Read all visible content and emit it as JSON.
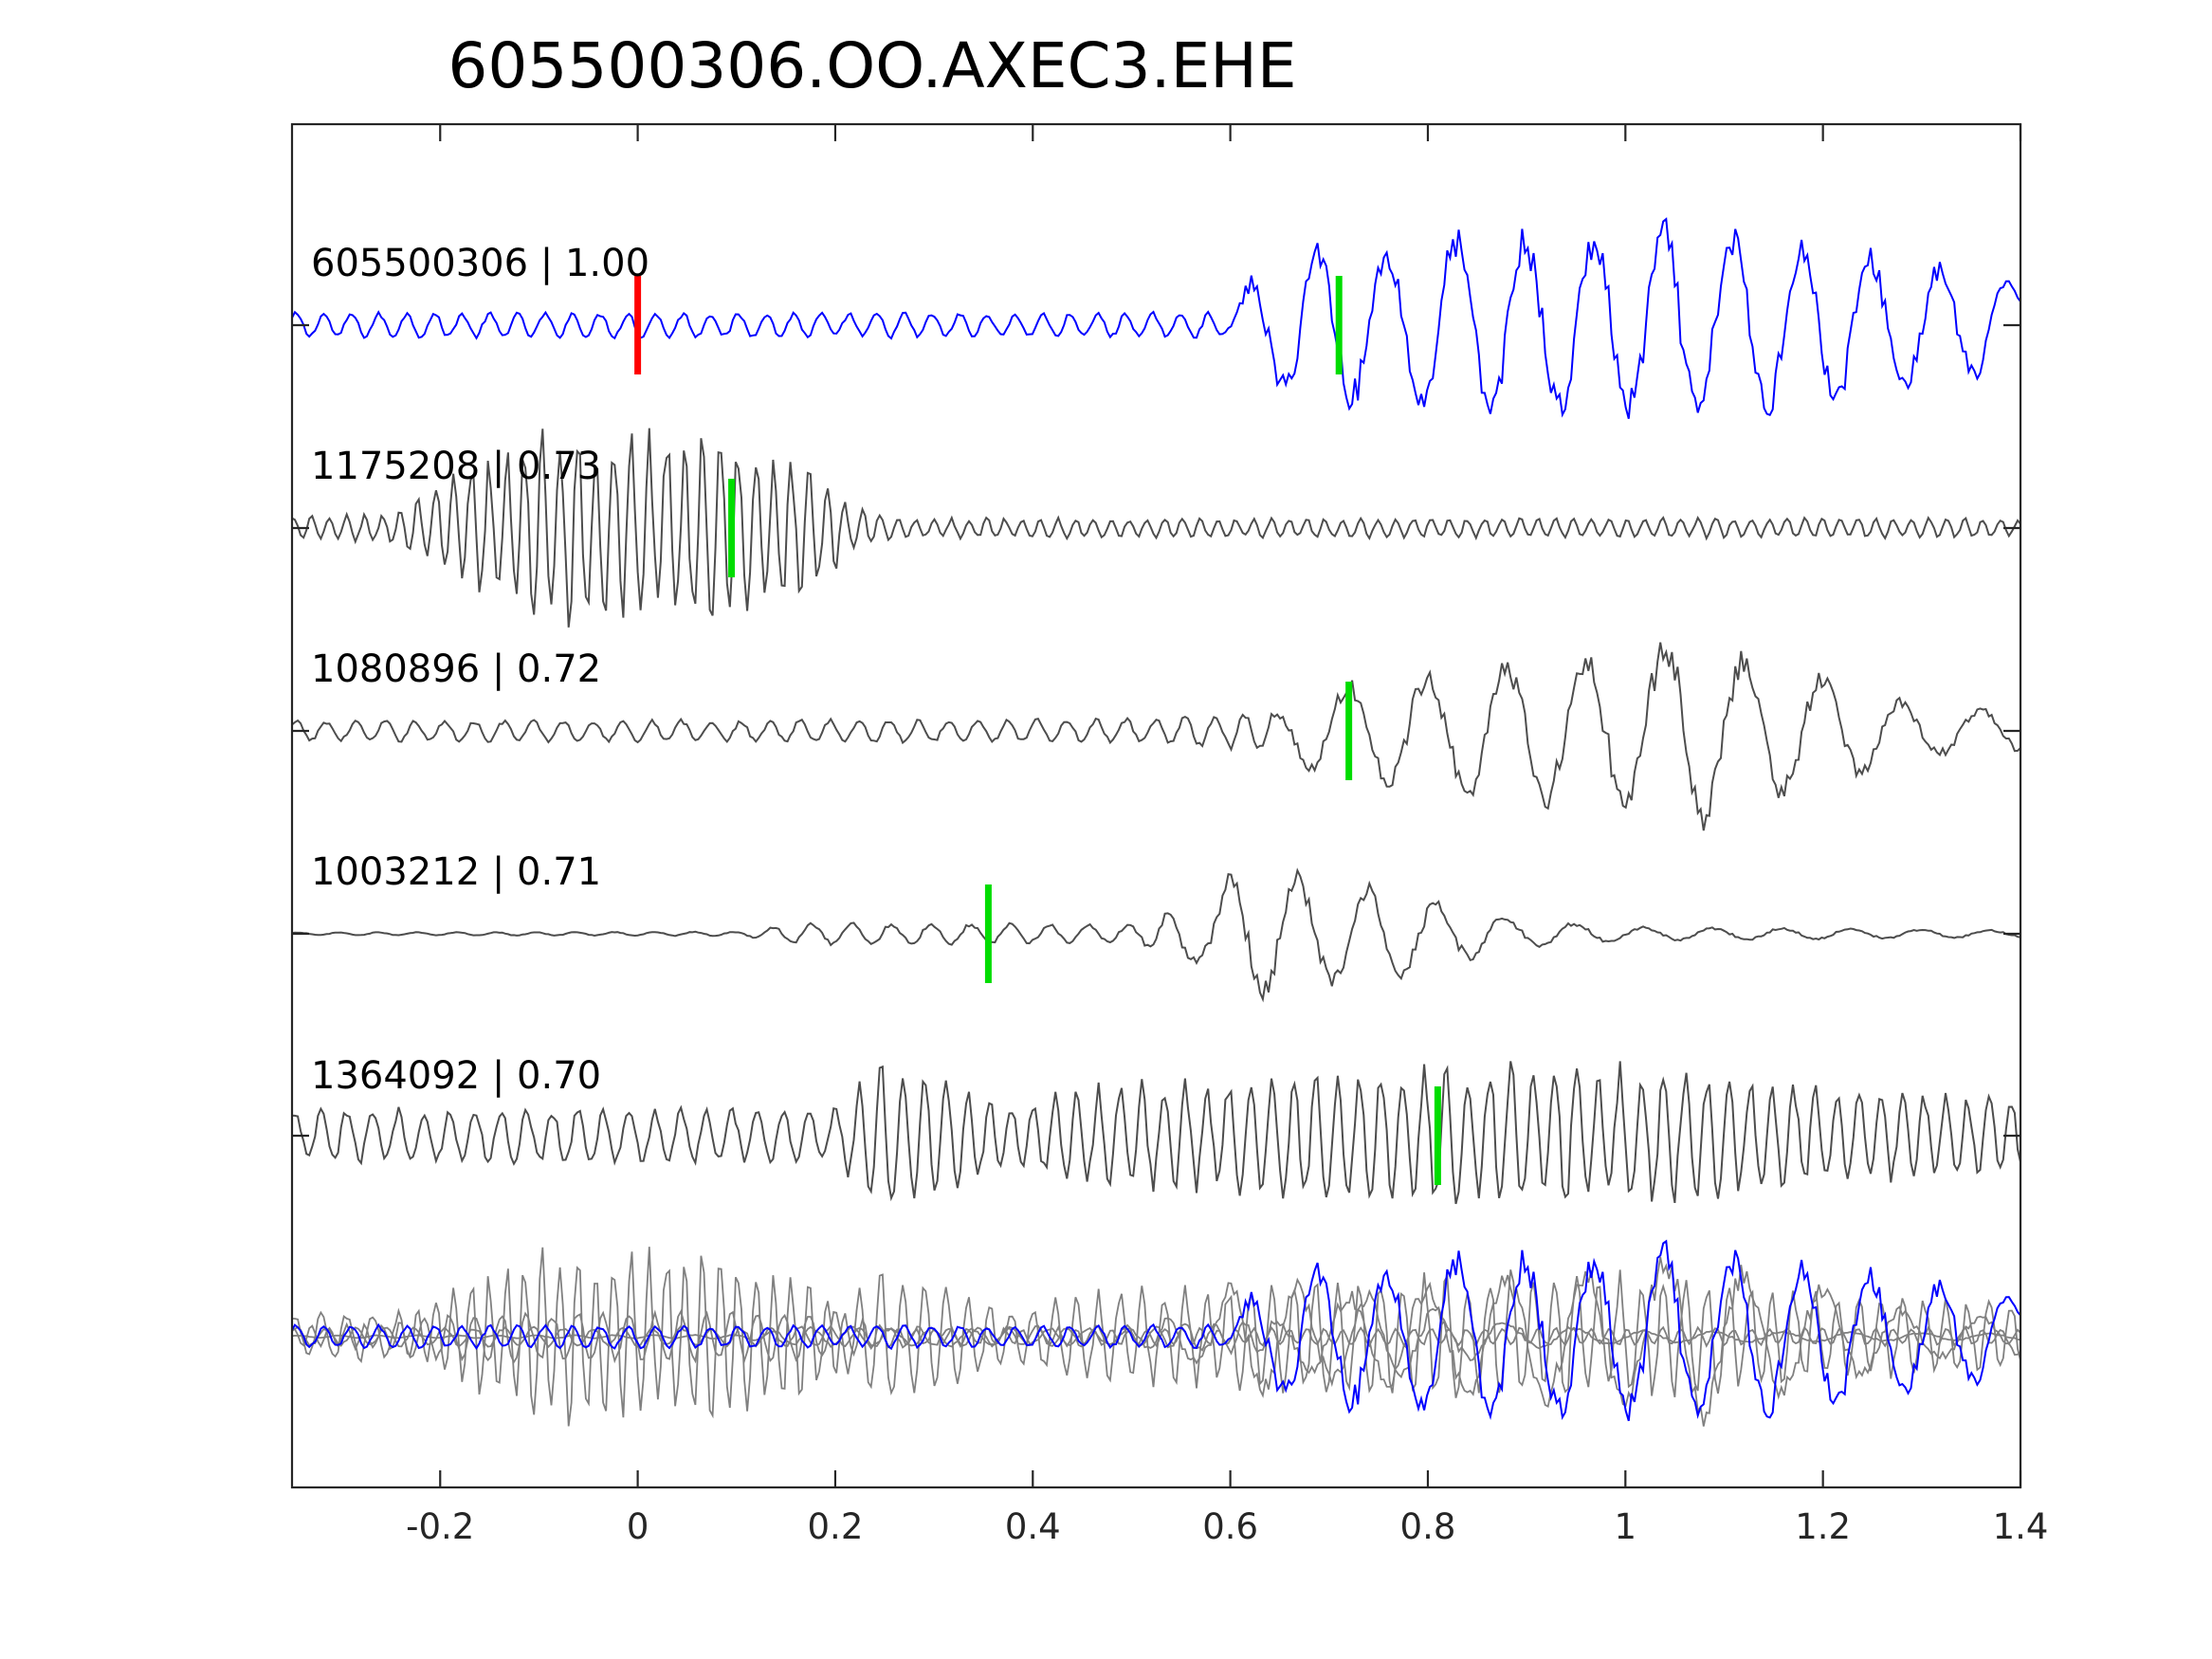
{
  "chart_data": {
    "type": "line",
    "title": "605500306.OO.AXEC3.EHE",
    "xlabel": "",
    "ylabel": "",
    "xlim": [
      -0.35,
      1.4
    ],
    "xticks": [
      -0.2,
      0,
      0.2,
      0.4,
      0.6,
      0.8,
      1,
      1.2,
      1.4
    ],
    "xtick_labels": [
      "-0.2",
      "0",
      "0.2",
      "0.4",
      "0.6",
      "0.8",
      "1",
      "1.2",
      "1.4"
    ],
    "grid": false,
    "legend": "none",
    "colors": {
      "reference": "#0000ff",
      "match": "#4d4d4d",
      "overlay": "#808080",
      "red_pick": "#ff0000",
      "green_pick": "#00dd00",
      "axes": "#262626"
    },
    "traces": [
      {
        "label": "605500306 | 1.00",
        "id": "605500306",
        "correlation": 1.0,
        "role": "reference",
        "red_pick_x": 0.0,
        "green_pick_x": 0.71,
        "envelope": [
          [
            -0.35,
            0.12
          ],
          [
            0.6,
            0.12
          ],
          [
            0.62,
            0.45
          ],
          [
            0.67,
            0.8
          ],
          [
            0.75,
            0.75
          ],
          [
            0.82,
            0.9
          ],
          [
            1.0,
            0.9
          ],
          [
            1.05,
            1.0
          ],
          [
            1.2,
            0.8
          ],
          [
            1.3,
            0.6
          ],
          [
            1.4,
            0.5
          ]
        ]
      },
      {
        "label": "1175208 | 0.73",
        "id": "1175208",
        "correlation": 0.73,
        "role": "match",
        "green_pick_x": 0.095,
        "envelope": [
          [
            -0.35,
            0.12
          ],
          [
            -0.25,
            0.15
          ],
          [
            -0.18,
            0.6
          ],
          [
            -0.1,
            0.95
          ],
          [
            0.0,
            1.0
          ],
          [
            0.05,
            1.0
          ],
          [
            0.12,
            0.8
          ],
          [
            0.18,
            0.6
          ],
          [
            0.22,
            0.25
          ],
          [
            0.26,
            0.1
          ],
          [
            1.4,
            0.1
          ]
        ]
      },
      {
        "label": "1080896 | 0.72",
        "id": "1080896",
        "correlation": 0.72,
        "role": "match",
        "green_pick_x": 0.72,
        "envelope": [
          [
            -0.35,
            0.1
          ],
          [
            0.5,
            0.12
          ],
          [
            0.65,
            0.2
          ],
          [
            0.68,
            0.4
          ],
          [
            0.78,
            0.6
          ],
          [
            0.9,
            0.7
          ],
          [
            1.0,
            0.8
          ],
          [
            1.05,
            1.0
          ],
          [
            1.2,
            0.55
          ],
          [
            1.3,
            0.25
          ],
          [
            1.4,
            0.2
          ]
        ]
      },
      {
        "label": "1003212 | 0.71",
        "id": "1003212",
        "correlation": 0.71,
        "role": "match",
        "green_pick_x": 0.355,
        "envelope": [
          [
            -0.35,
            0.02
          ],
          [
            0.1,
            0.03
          ],
          [
            0.17,
            0.15
          ],
          [
            0.3,
            0.15
          ],
          [
            0.5,
            0.12
          ],
          [
            0.57,
            0.5
          ],
          [
            0.62,
            1.0
          ],
          [
            0.68,
            0.85
          ],
          [
            0.8,
            0.5
          ],
          [
            0.9,
            0.2
          ],
          [
            1.0,
            0.1
          ],
          [
            1.4,
            0.05
          ]
        ]
      },
      {
        "label": "1364092 | 0.70",
        "id": "1364092",
        "correlation": 0.7,
        "role": "match",
        "green_pick_x": 0.81,
        "envelope": [
          [
            -0.35,
            0.3
          ],
          [
            0.2,
            0.3
          ],
          [
            0.25,
            0.85
          ],
          [
            0.3,
            0.7
          ],
          [
            0.38,
            0.3
          ],
          [
            0.45,
            0.55
          ],
          [
            0.6,
            0.6
          ],
          [
            0.8,
            0.75
          ],
          [
            0.95,
            0.8
          ],
          [
            1.1,
            0.65
          ],
          [
            1.25,
            0.5
          ],
          [
            1.4,
            0.4
          ]
        ]
      }
    ],
    "overlay": {
      "description": "all traces superimposed at the bottom"
    }
  }
}
